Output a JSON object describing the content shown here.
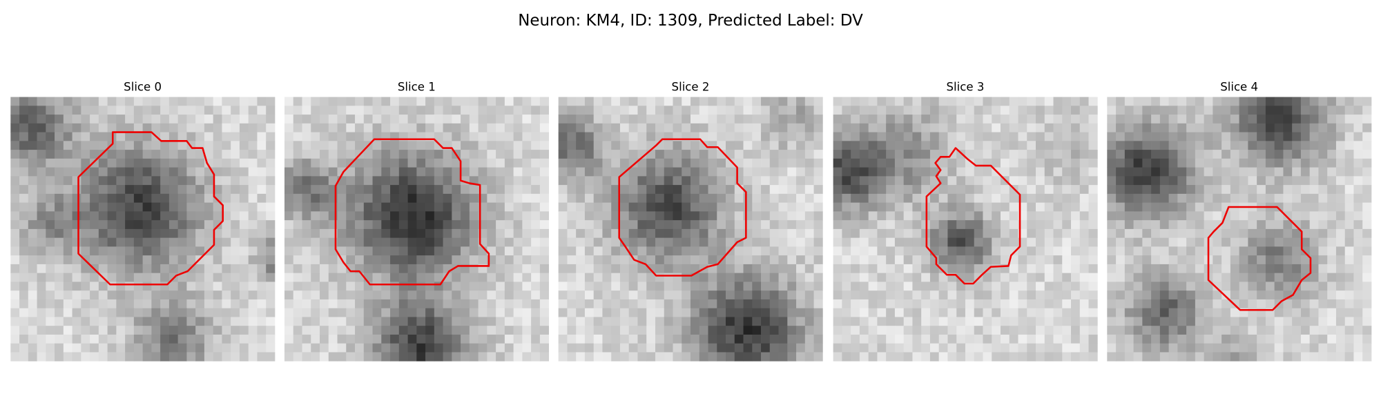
{
  "header": {
    "title": "Neuron: KM4, ID: 1309, Predicted Label: DV"
  },
  "panels": [
    {
      "title": "Slice 0"
    },
    {
      "title": "Slice 1"
    },
    {
      "title": "Slice 2"
    },
    {
      "title": "Slice 3"
    },
    {
      "title": "Slice 4"
    }
  ]
}
